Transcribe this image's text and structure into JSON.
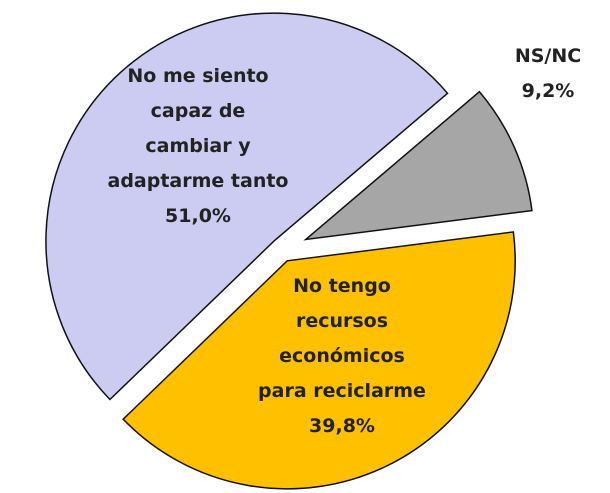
{
  "chart_data": {
    "type": "pie",
    "categories": [
      "No me siento\ncapaz de\ncambiar y\nadaptarme tanto",
      "NS/NC",
      "No tengo\nrecursos\neconómicos\npara reciclarme"
    ],
    "values": [
      51.0,
      9.2,
      39.8
    ],
    "value_labels": [
      "51,0%",
      "9,2%",
      "39,8%"
    ],
    "colors": [
      "#ccccf2",
      "#a6a6a6",
      "#ffc000"
    ]
  }
}
